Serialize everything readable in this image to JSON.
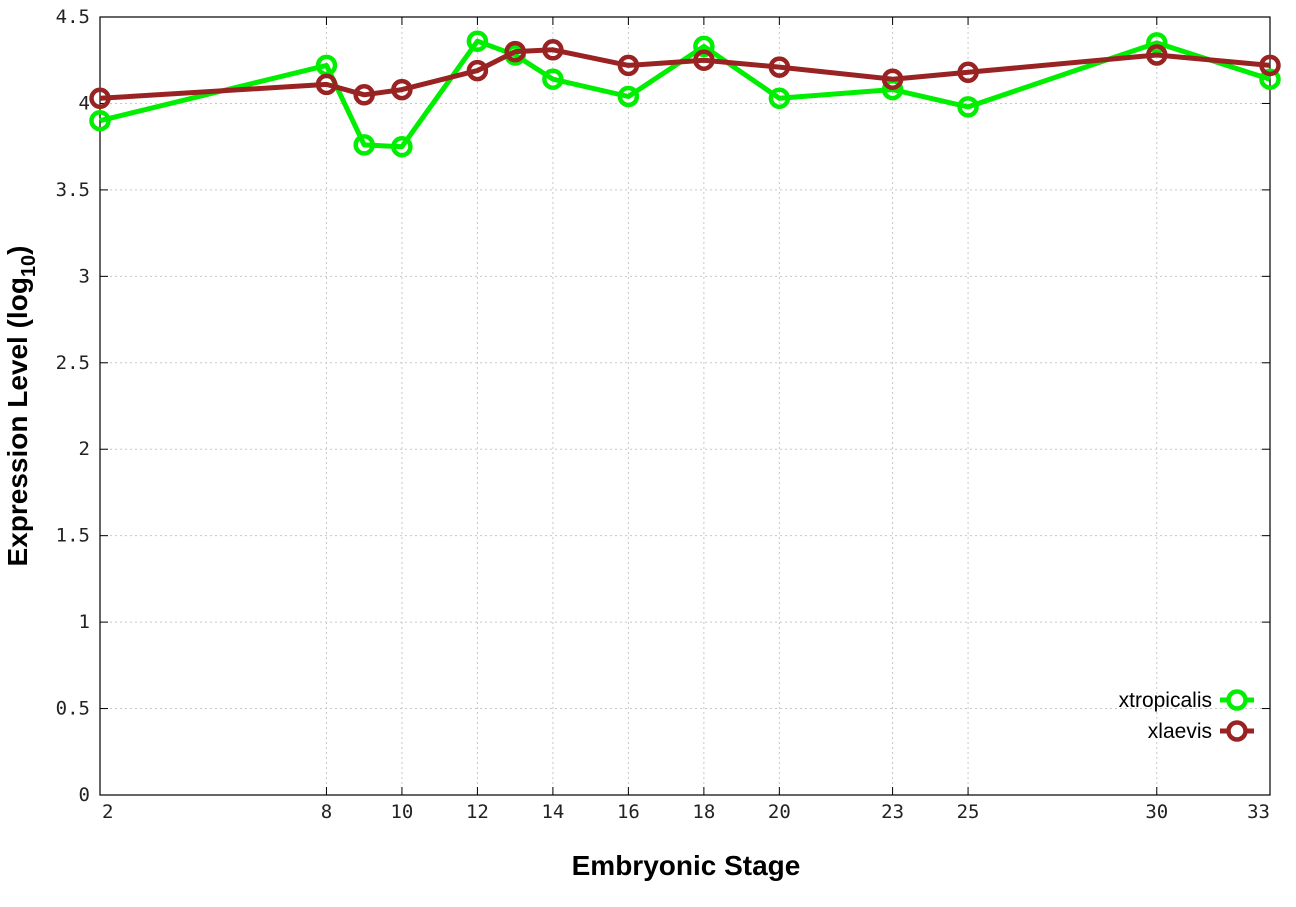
{
  "chart_data": {
    "type": "line",
    "xlabel": "Embryonic Stage",
    "ylabel": "Expression Level (log",
    "ylabel_subscript": "10",
    "ylabel_suffix": ")",
    "x_ticks": [
      2,
      8,
      10,
      12,
      14,
      16,
      18,
      20,
      23,
      25,
      30,
      33
    ],
    "x_tick_labels": [
      "2",
      "8",
      "10",
      "12",
      "14",
      "16",
      "18",
      "20",
      "23",
      "25",
      "30",
      "33"
    ],
    "y_ticks": [
      0,
      0.5,
      1,
      1.5,
      2,
      2.5,
      3,
      3.5,
      4,
      4.5
    ],
    "y_tick_labels": [
      "0",
      "0.5",
      "1",
      "1.5",
      "2",
      "2.5",
      "3",
      "3.5",
      "4",
      "4.5"
    ],
    "xlim": [
      2,
      33
    ],
    "ylim": [
      0,
      4.5
    ],
    "grid": true,
    "legend_position": "bottom-right",
    "series": [
      {
        "name": "xtropicalis",
        "color": "#00ee00",
        "x": [
          2,
          8,
          9,
          10,
          12,
          13,
          14,
          16,
          18,
          20,
          23,
          25,
          30,
          33
        ],
        "y": [
          3.9,
          4.22,
          3.76,
          3.75,
          4.36,
          4.28,
          4.14,
          4.04,
          4.33,
          4.03,
          4.08,
          3.98,
          4.35,
          4.14
        ]
      },
      {
        "name": "xlaevis",
        "color": "#992222",
        "x": [
          2,
          8,
          9,
          10,
          12,
          13,
          14,
          16,
          18,
          20,
          23,
          25,
          30,
          33
        ],
        "y": [
          4.03,
          4.11,
          4.05,
          4.08,
          4.19,
          4.3,
          4.31,
          4.22,
          4.25,
          4.21,
          4.14,
          4.18,
          4.28,
          4.22
        ]
      }
    ]
  }
}
